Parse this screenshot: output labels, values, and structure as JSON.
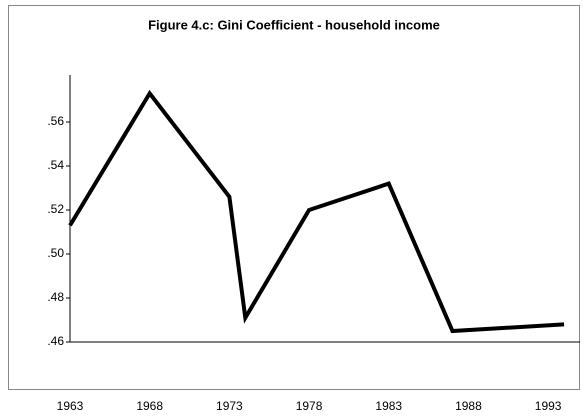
{
  "chart_data": {
    "type": "line",
    "title": "Figure 4.c: Gini Coefficient - household income",
    "x": [
      1963,
      1968,
      1973,
      1974,
      1978,
      1983,
      1987,
      1994
    ],
    "series": [
      {
        "color": "#000000",
        "values": [
          0.513,
          0.573,
          0.526,
          0.471,
          0.52,
          0.532,
          0.465,
          0.468
        ]
      }
    ],
    "xlim": [
      1963,
      1995
    ],
    "xticks": [
      1963,
      1968,
      1973,
      1978,
      1983,
      1988,
      1993
    ],
    "ylim": [
      0.46,
      0.58
    ],
    "yticks": [
      {
        "value": 0.46,
        "label": ".46"
      },
      {
        "value": 0.48,
        "label": ".48"
      },
      {
        "value": 0.5,
        "label": ".50"
      },
      {
        "value": 0.52,
        "label": ".52"
      },
      {
        "value": 0.54,
        "label": ".54"
      },
      {
        "value": 0.56,
        "label": ".56"
      }
    ]
  }
}
